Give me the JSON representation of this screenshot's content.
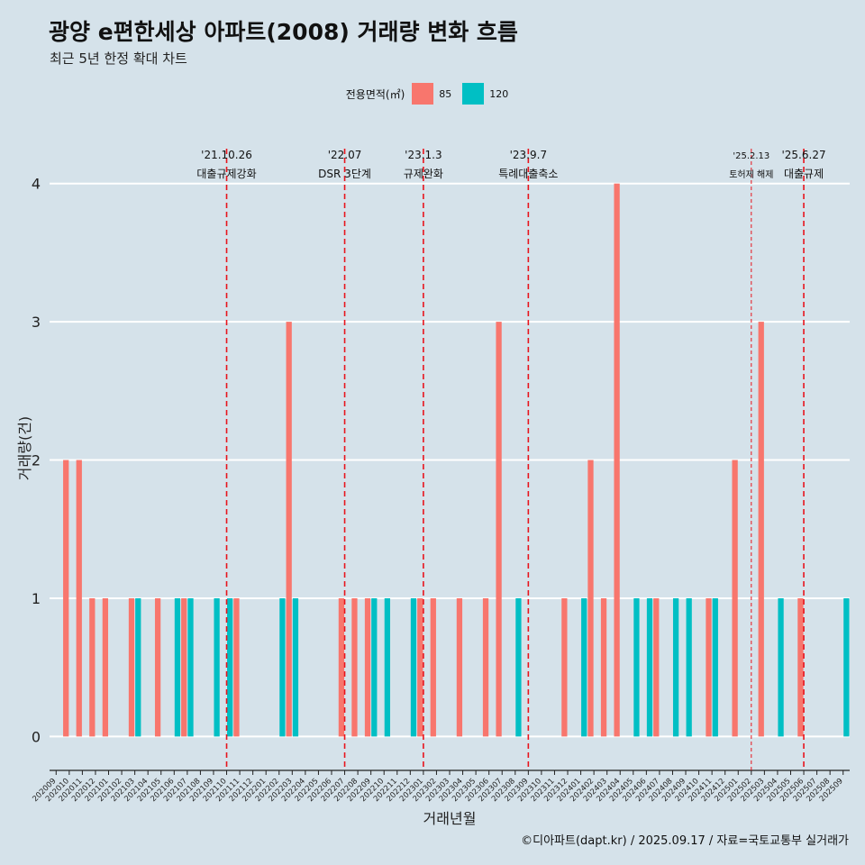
{
  "header": {
    "title": "광양 e편한세상 아파트(2008) 거래량 변화 흐름",
    "subtitle": "최근 5년 한정 확대 차트"
  },
  "legend": {
    "title": "전용면적(㎡)",
    "items": [
      {
        "label": "85",
        "color": "#f8766d"
      },
      {
        "label": "120",
        "color": "#00bfc4"
      }
    ]
  },
  "caption": "©디아파트(dapt.kr) / 2025.09.17 / 자료=국토교통부 실거래가",
  "chart_data": {
    "type": "bar",
    "xlabel": "거래년월",
    "ylabel": "거래량(건)",
    "ylim": [
      -0.18,
      4.35
    ],
    "yticks": [
      0,
      1,
      2,
      3,
      4
    ],
    "categories": [
      "202009",
      "202010",
      "202011",
      "202012",
      "202101",
      "202102",
      "202103",
      "202104",
      "202105",
      "202106",
      "202107",
      "202108",
      "202109",
      "202110",
      "202111",
      "202112",
      "202201",
      "202202",
      "202203",
      "202204",
      "202205",
      "202206",
      "202207",
      "202208",
      "202209",
      "202210",
      "202211",
      "202212",
      "202301",
      "202302",
      "202303",
      "202304",
      "202305",
      "202306",
      "202307",
      "202308",
      "202309",
      "202310",
      "202311",
      "202312",
      "202401",
      "202402",
      "202403",
      "202404",
      "202405",
      "202406",
      "202407",
      "202408",
      "202409",
      "202410",
      "202411",
      "202412",
      "202501",
      "202502",
      "202503",
      "202504",
      "202505",
      "202506",
      "202507",
      "202508",
      "202509"
    ],
    "series": [
      {
        "name": "85",
        "color": "#f8766d",
        "values": [
          0,
          2,
          2,
          1,
          1,
          0,
          1,
          0,
          1,
          0,
          1,
          0,
          0,
          0,
          1,
          0,
          0,
          0,
          3,
          0,
          0,
          0,
          1,
          1,
          1,
          0,
          0,
          0,
          1,
          1,
          0,
          1,
          0,
          1,
          3,
          0,
          0,
          0,
          0,
          1,
          0,
          2,
          1,
          4,
          0,
          0,
          1,
          0,
          0,
          0,
          1,
          0,
          2,
          0,
          3,
          0,
          0,
          1,
          0,
          0,
          0
        ]
      },
      {
        "name": "120",
        "color": "#00bfc4",
        "values": [
          0,
          0,
          0,
          0,
          0,
          0,
          1,
          0,
          0,
          1,
          1,
          0,
          1,
          1,
          0,
          0,
          0,
          1,
          1,
          0,
          0,
          0,
          0,
          0,
          1,
          1,
          0,
          1,
          0,
          0,
          0,
          0,
          0,
          0,
          0,
          1,
          0,
          0,
          0,
          0,
          1,
          0,
          0,
          0,
          1,
          1,
          0,
          1,
          1,
          0,
          1,
          0,
          0,
          0,
          0,
          1,
          0,
          0,
          0,
          0,
          1
        ]
      }
    ],
    "annotations": [
      {
        "date": "202110",
        "line1": "'21.10.26",
        "line2": "대출규제강화",
        "style": "bold"
      },
      {
        "date": "202207",
        "line1": "'22.07",
        "line2": "DSR 3단계",
        "style": "bold"
      },
      {
        "date": "202301",
        "line1": "'23.1.3",
        "line2": "규제완화",
        "style": "bold"
      },
      {
        "date": "202309",
        "line1": "'23.9.7",
        "line2": "특례대출축소",
        "style": "bold"
      },
      {
        "date": "202502",
        "line1": "'25.2.13",
        "line2": "토허제 해제",
        "style": "thin"
      },
      {
        "date": "202506",
        "line1": "'25.6.27",
        "line2": "대출규제",
        "style": "bold"
      }
    ]
  }
}
